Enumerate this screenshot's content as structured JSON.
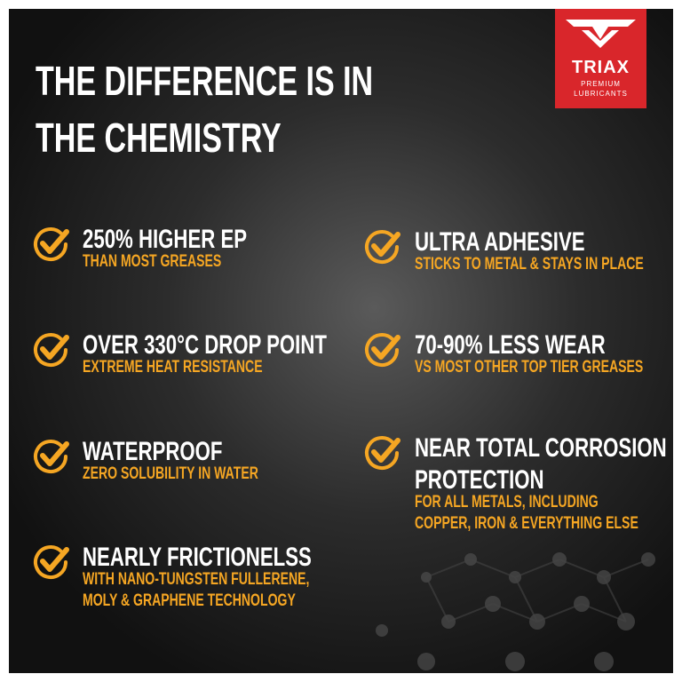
{
  "header": {
    "title": [
      "THE DIFFERENCE IS IN",
      "THE CHEMISTRY"
    ]
  },
  "logo": {
    "brand": "TRIAX",
    "tagline": [
      "PREMIUM",
      "LUBRICANTS"
    ]
  },
  "features": {
    "left": [
      {
        "heading": [
          "250% HIGHER EP"
        ],
        "detail": [
          "THAN MOST GREASES"
        ]
      },
      {
        "heading": [
          "OVER 330°C DROP POINT"
        ],
        "detail": [
          "EXTREME HEAT RESISTANCE"
        ]
      },
      {
        "heading": [
          "WATERPROOF"
        ],
        "detail": [
          "ZERO SOLUBILITY IN WATER"
        ]
      },
      {
        "heading": [
          "NEARLY FRICTIONELSS"
        ],
        "detail": [
          "WITH NANO-TUNGSTEN FULLERENE,",
          "MOLY & GRAPHENE TECHNOLOGY"
        ]
      }
    ],
    "right": [
      {
        "heading": [
          "ULTRA ADHESIVE"
        ],
        "detail": [
          "STICKS TO METAL & STAYS IN PLACE"
        ]
      },
      {
        "heading": [
          "70-90% LESS WEAR"
        ],
        "detail": [
          "VS MOST OTHER TOP TIER GREASES"
        ]
      },
      {
        "heading": [
          "NEAR TOTAL CORROSION",
          "PROTECTION"
        ],
        "detail": [
          "FOR ALL METALS, INCLUDING",
          "COPPER, IRON & EVERYTHING ELSE"
        ]
      }
    ]
  }
}
